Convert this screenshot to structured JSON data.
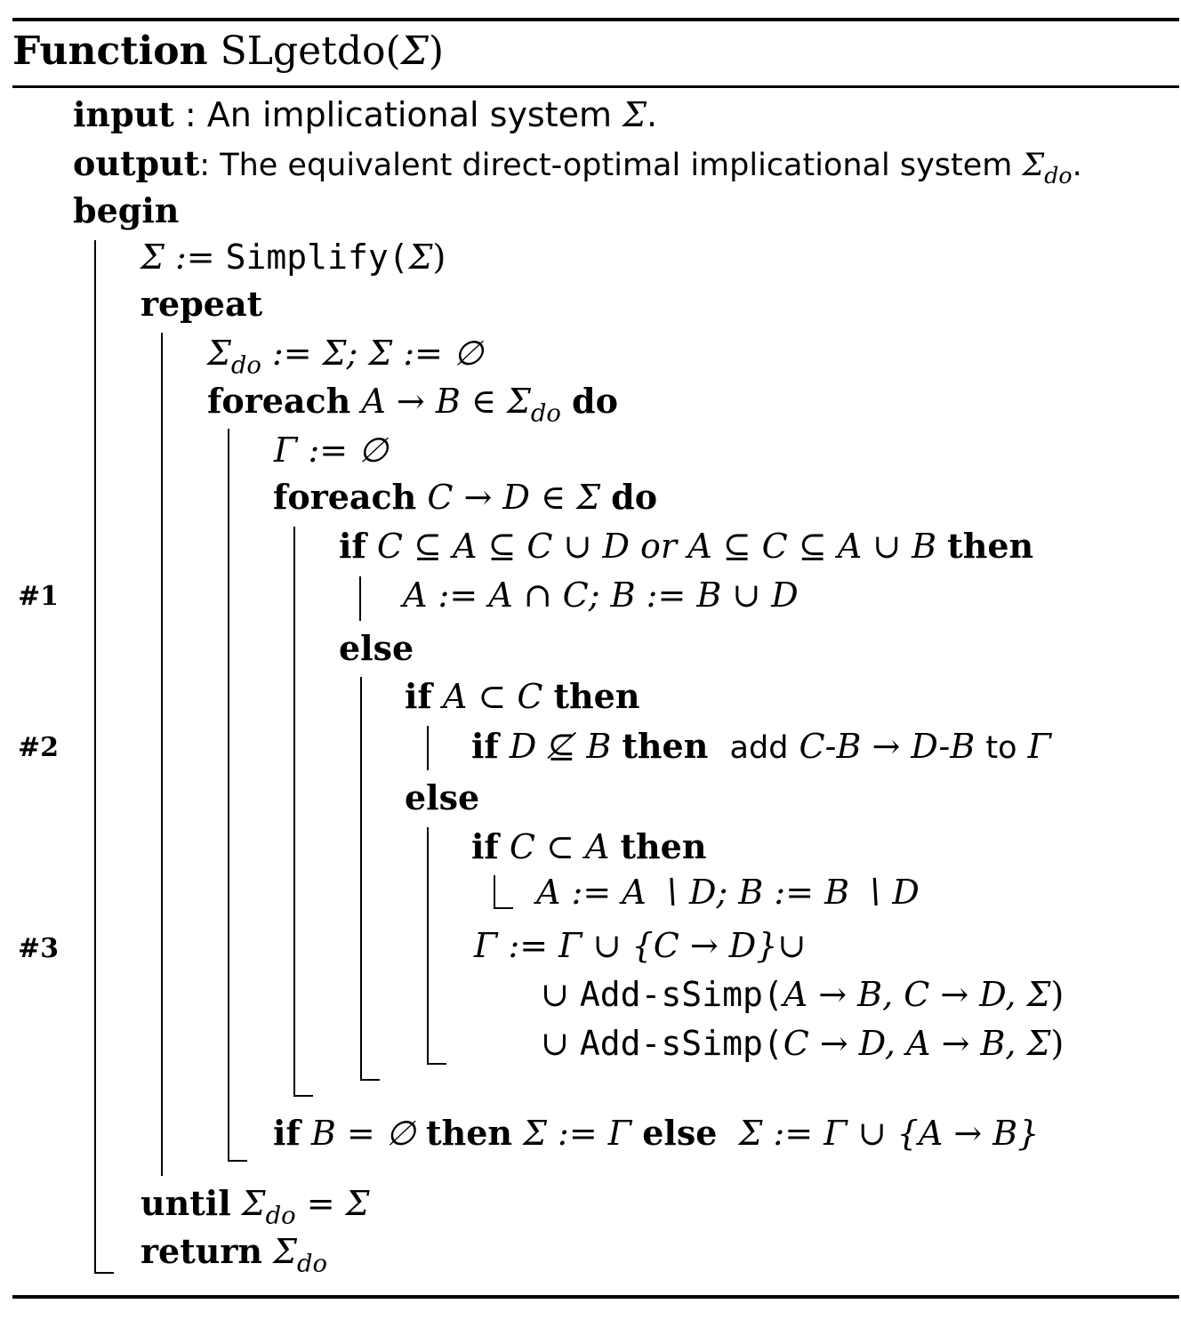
{
  "function": {
    "keyword": "Function",
    "name": "SLgetdo(",
    "arg": "Σ",
    "close": ")"
  },
  "io": {
    "input_kw": "input",
    "input_text": " : An implicational system ",
    "input_sym": "Σ",
    "input_end": ".",
    "output_kw": "output",
    "output_text": ": The equivalent direct-optimal implicational system ",
    "output_sym": "Σ",
    "output_sub": "do",
    "output_end": "."
  },
  "kw": {
    "begin": "begin",
    "repeat": "repeat",
    "foreach": "foreach",
    "do": "do",
    "if": "if",
    "then": "then",
    "else": "else",
    "or": "or",
    "until": "until",
    "return": "return",
    "add": "add",
    "to": "to"
  },
  "lines": {
    "simplify": {
      "a": "Σ := ",
      "fn": "Simplify(",
      "b": "Σ",
      "c": ")"
    },
    "assign_do": {
      "a": "Σ",
      "sub": "do",
      "b": " := Σ;  Σ := ∅"
    },
    "foreach1": {
      "a": "A → B ∈ Σ",
      "sub": "do"
    },
    "gamma_init": "Γ := ∅",
    "foreach2": "C → D ∈ Σ",
    "cond1a": "C ⊆ A ⊆ C ∪ D",
    "cond1b": "A ⊆ C ⊆ A ∪ B",
    "stmt1": "A := A ∩ C; B := B ∪ D",
    "cond2": "A ⊂ C",
    "cond2b": "D ⊈ B",
    "stmt2": "C-B → D-B",
    "gamma": "Γ",
    "cond3": "C ⊂ A",
    "stmt3": "A := A ∖ D; B := B ∖ D",
    "gamma_upd": "Γ := Γ ∪ {C → D}∪",
    "union1_a": "∪ ",
    "union1_fn": "Add-sSimp(",
    "union1_b": "A → B, C → D, Σ",
    "union1_c": ")",
    "union2_a": "∪ ",
    "union2_fn": "Add-sSimp(",
    "union2_b": "C → D, A → B, Σ",
    "union2_c": ")",
    "final_if_a": "B = ∅",
    "final_if_b": "Σ := Γ",
    "final_if_c": "Σ := Γ ∪ {A → B}",
    "until_a": "Σ",
    "until_sub": "do",
    "until_b": " = Σ",
    "return_a": "Σ",
    "return_sub": "do"
  },
  "labels": [
    "#1",
    "#2",
    "#3"
  ]
}
